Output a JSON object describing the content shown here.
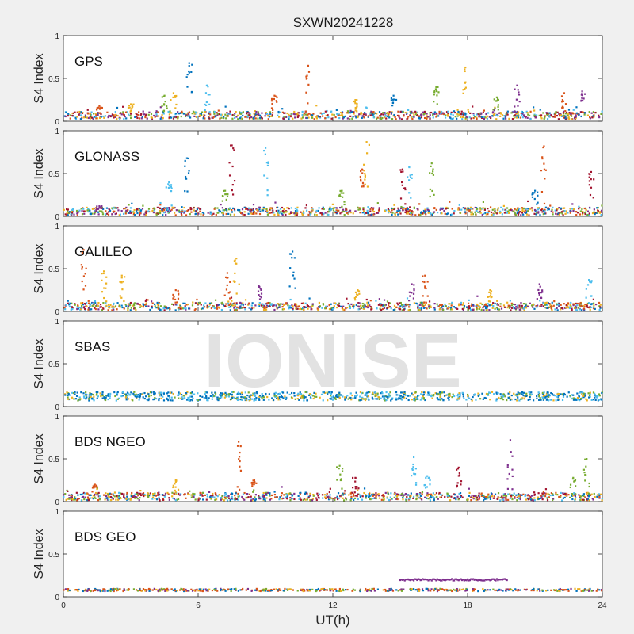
{
  "figure": {
    "title": "SXWN20241228",
    "xlabel": "UT(h)",
    "watermark": "IONISE",
    "background": "#f0f0f0",
    "axes_background": "#ffffff"
  },
  "chart_data": {
    "type": "scatter",
    "xlim": [
      0,
      24
    ],
    "ylim": [
      0,
      1
    ],
    "x_ticks": [
      0,
      6,
      12,
      18,
      24
    ],
    "y_ticks": [
      0,
      0.5,
      1
    ],
    "ylabel": "S4 Index",
    "grid": false,
    "palette": [
      "#0072BD",
      "#D95319",
      "#EDB120",
      "#7E2F8E",
      "#77AC30",
      "#4DBEEE",
      "#A2142F"
    ],
    "panels": [
      {
        "label": "GPS",
        "baseline": 0.07,
        "spikes": [
          {
            "t": 1.6,
            "peak": 0.18,
            "color": 1
          },
          {
            "t": 3.0,
            "peak": 0.2,
            "color": 2
          },
          {
            "t": 4.5,
            "peak": 0.3,
            "color": 4
          },
          {
            "t": 4.9,
            "peak": 0.33,
            "color": 2
          },
          {
            "t": 5.6,
            "peak": 0.68,
            "color": 0
          },
          {
            "t": 6.4,
            "peak": 0.42,
            "color": 5
          },
          {
            "t": 9.4,
            "peak": 0.3,
            "color": 1
          },
          {
            "t": 10.9,
            "peak": 0.65,
            "color": 1
          },
          {
            "t": 13.0,
            "peak": 0.25,
            "color": 2
          },
          {
            "t": 14.7,
            "peak": 0.3,
            "color": 0
          },
          {
            "t": 16.6,
            "peak": 0.4,
            "color": 4
          },
          {
            "t": 17.9,
            "peak": 0.63,
            "color": 2
          },
          {
            "t": 19.3,
            "peak": 0.28,
            "color": 4
          },
          {
            "t": 20.2,
            "peak": 0.42,
            "color": 3
          },
          {
            "t": 22.3,
            "peak": 0.33,
            "color": 1
          },
          {
            "t": 23.1,
            "peak": 0.35,
            "color": 3
          }
        ]
      },
      {
        "label": "GLONASS",
        "baseline": 0.06,
        "spikes": [
          {
            "t": 1.6,
            "peak": 0.12,
            "color": 3
          },
          {
            "t": 4.7,
            "peak": 0.4,
            "color": 5
          },
          {
            "t": 5.5,
            "peak": 0.68,
            "color": 0
          },
          {
            "t": 7.2,
            "peak": 0.3,
            "color": 4
          },
          {
            "t": 7.5,
            "peak": 0.83,
            "color": 6
          },
          {
            "t": 9.0,
            "peak": 0.8,
            "color": 5
          },
          {
            "t": 12.4,
            "peak": 0.3,
            "color": 4
          },
          {
            "t": 13.5,
            "peak": 0.87,
            "color": 2
          },
          {
            "t": 13.3,
            "peak": 0.55,
            "color": 1
          },
          {
            "t": 15.1,
            "peak": 0.55,
            "color": 6
          },
          {
            "t": 15.4,
            "peak": 0.58,
            "color": 5
          },
          {
            "t": 16.4,
            "peak": 0.62,
            "color": 4
          },
          {
            "t": 21.0,
            "peak": 0.3,
            "color": 0
          },
          {
            "t": 21.4,
            "peak": 0.82,
            "color": 1
          },
          {
            "t": 23.5,
            "peak": 0.52,
            "color": 6
          }
        ]
      },
      {
        "label": "GALILEO",
        "baseline": 0.06,
        "spikes": [
          {
            "t": 0.9,
            "peak": 0.72,
            "color": 1
          },
          {
            "t": 1.8,
            "peak": 0.47,
            "color": 2
          },
          {
            "t": 2.6,
            "peak": 0.42,
            "color": 2
          },
          {
            "t": 5.0,
            "peak": 0.25,
            "color": 1
          },
          {
            "t": 7.3,
            "peak": 0.45,
            "color": 1
          },
          {
            "t": 7.7,
            "peak": 0.62,
            "color": 2
          },
          {
            "t": 8.7,
            "peak": 0.3,
            "color": 3
          },
          {
            "t": 10.2,
            "peak": 0.7,
            "color": 0
          },
          {
            "t": 13.1,
            "peak": 0.25,
            "color": 2
          },
          {
            "t": 15.5,
            "peak": 0.32,
            "color": 3
          },
          {
            "t": 16.1,
            "peak": 0.42,
            "color": 1
          },
          {
            "t": 19.0,
            "peak": 0.25,
            "color": 2
          },
          {
            "t": 21.2,
            "peak": 0.32,
            "color": 3
          },
          {
            "t": 23.4,
            "peak": 0.37,
            "color": 5
          }
        ]
      },
      {
        "label": "SBAS",
        "baseline": 0.12,
        "spikes": []
      },
      {
        "label": "BDS NGEO",
        "baseline": 0.06,
        "spikes": [
          {
            "t": 1.4,
            "peak": 0.2,
            "color": 1
          },
          {
            "t": 5.0,
            "peak": 0.25,
            "color": 2
          },
          {
            "t": 7.8,
            "peak": 0.7,
            "color": 1
          },
          {
            "t": 8.5,
            "peak": 0.25,
            "color": 1
          },
          {
            "t": 12.3,
            "peak": 0.42,
            "color": 4
          },
          {
            "t": 13.0,
            "peak": 0.28,
            "color": 6
          },
          {
            "t": 15.6,
            "peak": 0.52,
            "color": 5
          },
          {
            "t": 16.2,
            "peak": 0.3,
            "color": 5
          },
          {
            "t": 17.6,
            "peak": 0.4,
            "color": 6
          },
          {
            "t": 19.9,
            "peak": 0.72,
            "color": 3
          },
          {
            "t": 22.7,
            "peak": 0.28,
            "color": 4
          },
          {
            "t": 23.3,
            "peak": 0.5,
            "color": 4
          }
        ]
      },
      {
        "label": "BDS GEO",
        "baseline": 0.08,
        "spikes": [],
        "segments": [
          {
            "x0": 15.0,
            "x1": 19.8,
            "y": 0.2,
            "color": 3
          }
        ]
      }
    ]
  }
}
